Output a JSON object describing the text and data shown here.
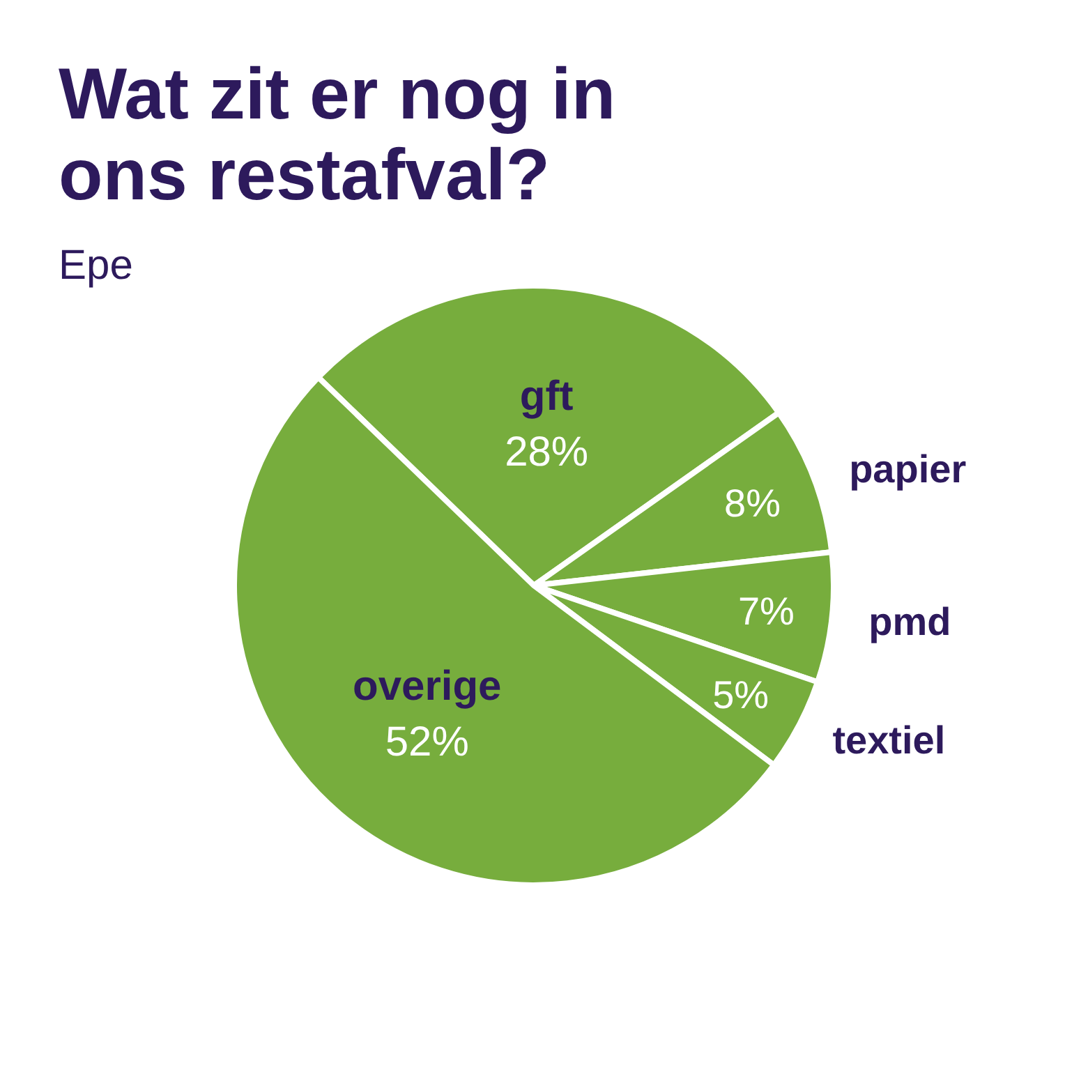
{
  "chart_data": {
    "type": "pie",
    "title": "Wat zit er nog in ons restafval?",
    "subtitle": "Epe",
    "categories": [
      "gft",
      "papier",
      "pmd",
      "textiel",
      "overige"
    ],
    "values": [
      28,
      8,
      7,
      5,
      52
    ],
    "value_labels": [
      "28%",
      "8%",
      "7%",
      "5%",
      "52%"
    ],
    "colors": [
      "#77ad3d",
      "#77ad3d",
      "#77ad3d",
      "#77ad3d",
      "#77ad3d"
    ],
    "legend": false
  }
}
